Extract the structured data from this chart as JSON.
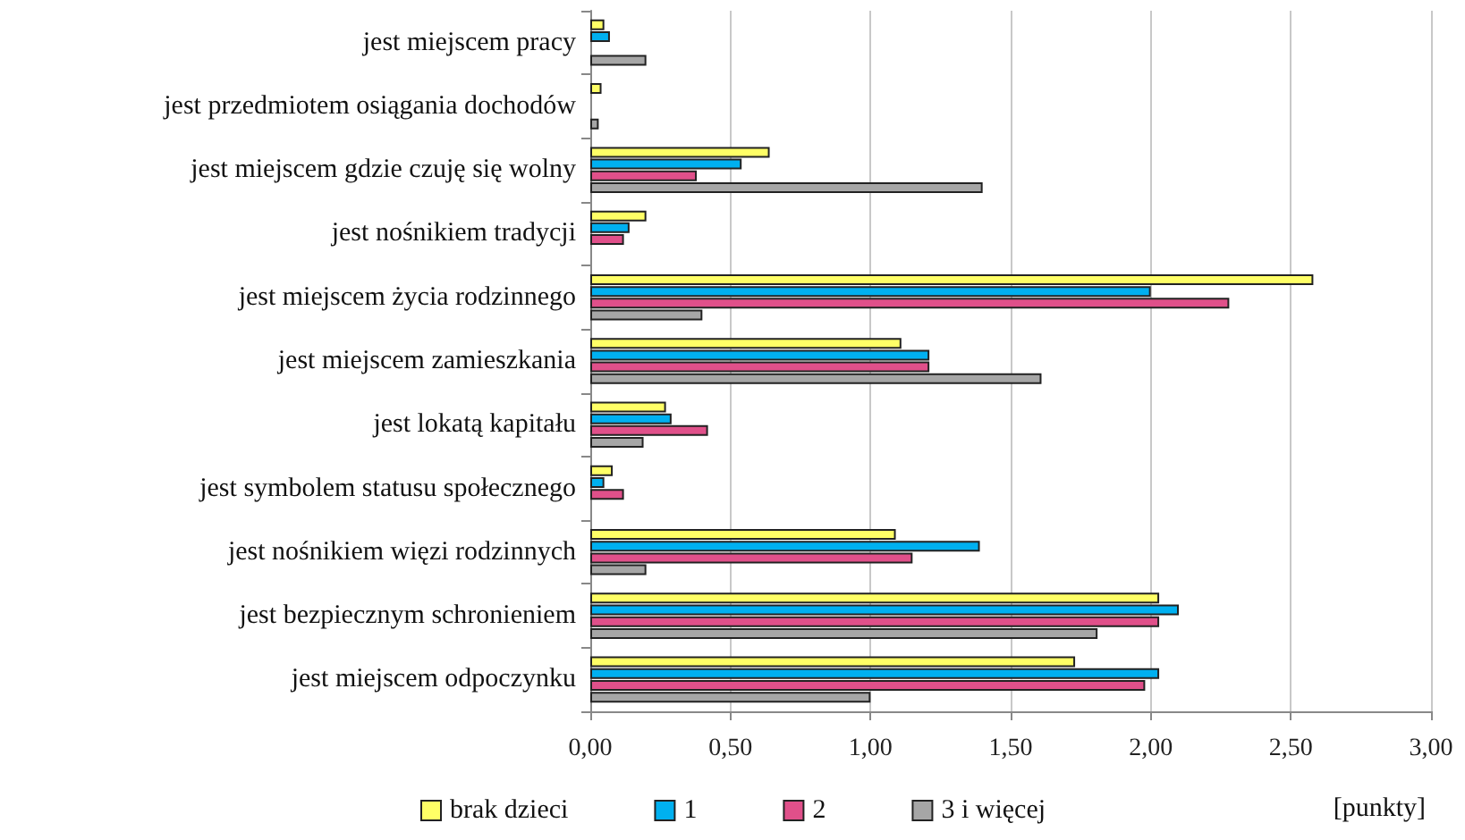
{
  "chart_data": {
    "type": "bar",
    "orientation": "horizontal",
    "xlabel": "[punkty]",
    "categories": [
      "jest miejscem pracy",
      "jest przedmiotem osiągania dochodów",
      "jest miejscem gdzie czuję się wolny",
      "jest nośnikiem tradycji",
      "jest miejscem życia rodzinnego",
      "jest miejscem zamieszkania",
      "jest lokatą kapitału",
      "jest symbolem statusu społecznego",
      "jest nośnikiem więzi rodzinnych",
      "jest bezpiecznym schronieniem",
      "jest miejscem odpoczynku"
    ],
    "series": [
      {
        "name": "brak dzieci",
        "color": "#ffff66",
        "values": [
          0.05,
          0.04,
          0.64,
          0.2,
          2.58,
          1.11,
          0.27,
          0.08,
          1.09,
          2.03,
          1.73
        ]
      },
      {
        "name": "1",
        "color": "#00b0f0",
        "values": [
          0.07,
          null,
          0.54,
          0.14,
          2.0,
          1.21,
          0.29,
          0.05,
          1.39,
          2.1,
          2.03
        ]
      },
      {
        "name": "2",
        "color": "#e0508a",
        "values": [
          null,
          null,
          0.38,
          0.12,
          2.28,
          1.21,
          0.42,
          0.12,
          1.15,
          2.03,
          1.98
        ]
      },
      {
        "name": "3 i więcej",
        "color": "#a6a6a6",
        "values": [
          0.2,
          0.03,
          1.4,
          null,
          0.4,
          1.61,
          0.19,
          null,
          0.2,
          1.81,
          1.0
        ]
      }
    ],
    "xlim": [
      0,
      3
    ],
    "xticks": [
      {
        "value": 0,
        "label": "0,00"
      },
      {
        "value": 0.5,
        "label": "0,50"
      },
      {
        "value": 1,
        "label": "1,00"
      },
      {
        "value": 1.5,
        "label": "1,50"
      },
      {
        "value": 2,
        "label": "2,00"
      },
      {
        "value": 2.5,
        "label": "2,50"
      },
      {
        "value": 3,
        "label": "3,00"
      }
    ],
    "grid": "x",
    "legend": "bottom left"
  }
}
